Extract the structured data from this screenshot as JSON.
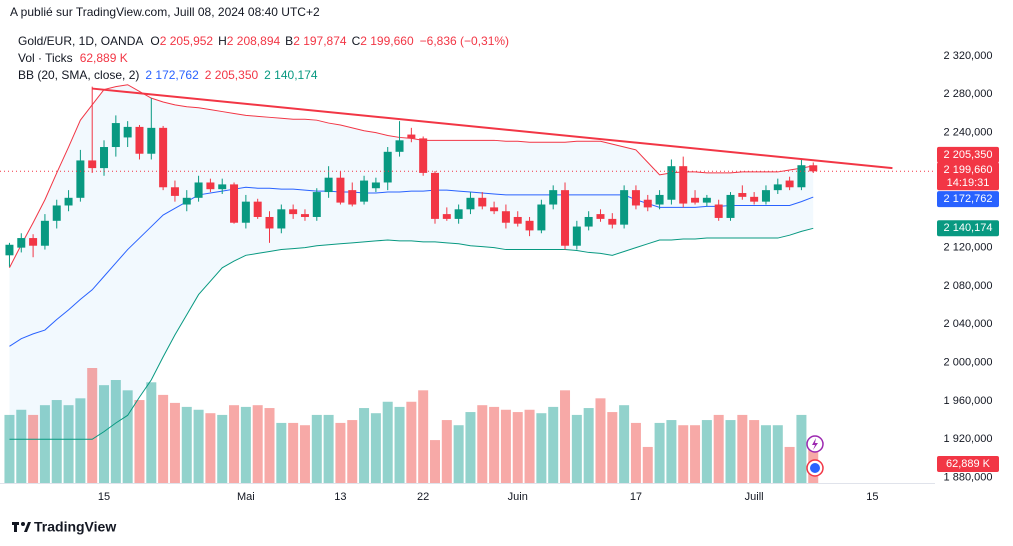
{
  "chart_data": {
    "type": "candlestick",
    "header": {
      "published": "A publié sur TradingView.com, Juill 08, 2024 08:40 UTC+2",
      "symbol": "Gold/EUR, 1D, OANDA",
      "ohlc_keys": [
        "O",
        "H",
        "B",
        "C"
      ],
      "ohlc_labels": [
        "2 205,952",
        "2 208,894",
        "2 197,874",
        "2 199,660"
      ],
      "change": "−6,836 (−0,31%)",
      "vol_title": "Vol · Ticks",
      "vol_label": "62,889 K",
      "bb_title": "BB (20, SMA, close, 2)",
      "countdown": "14:19:31"
    },
    "footer": "TradingView",
    "up_color": "#089981",
    "down_color": "#f23645",
    "vol_up_color": "rgba(38,166,154,0.5)",
    "vol_down_color": "rgba(239,83,80,0.5)",
    "grid": false,
    "xlim": [
      -0.8,
      78.3
    ],
    "ylim": [
      1874.4,
      2349.2
    ],
    "xticks": [
      {
        "value": 8,
        "label": "15"
      },
      {
        "value": 20,
        "label": "Mai"
      },
      {
        "value": 28,
        "label": "13"
      },
      {
        "value": 35,
        "label": "22"
      },
      {
        "value": 43,
        "label": "Juin"
      },
      {
        "value": 53,
        "label": "17"
      },
      {
        "value": 63,
        "label": "Juill"
      },
      {
        "value": 73,
        "label": "15"
      }
    ],
    "yticks": [
      {
        "value": 2320,
        "label": "2 320,000"
      },
      {
        "value": 2280,
        "label": "2 280,000"
      },
      {
        "value": 2240,
        "label": "2 240,000"
      },
      {
        "value": 2120,
        "label": "2 120,000"
      },
      {
        "value": 2080,
        "label": "2 080,000"
      },
      {
        "value": 2040,
        "label": "2 040,000"
      },
      {
        "value": 2000,
        "label": "2 000,000"
      },
      {
        "value": 1960,
        "label": "1 960,000"
      },
      {
        "value": 1920,
        "label": "1 920,000"
      },
      {
        "value": 1880,
        "label": "1 880,000"
      }
    ],
    "ohlc": [
      [
        2112,
        2125,
        2100,
        2123
      ],
      [
        2120,
        2135,
        2115,
        2130
      ],
      [
        2130,
        2134,
        2110,
        2122
      ],
      [
        2122,
        2155,
        2118,
        2148
      ],
      [
        2148,
        2170,
        2140,
        2164
      ],
      [
        2164,
        2180,
        2158,
        2172
      ],
      [
        2172,
        2222,
        2168,
        2211
      ],
      [
        2211,
        2288,
        2198,
        2203
      ],
      [
        2203,
        2232,
        2195,
        2225
      ],
      [
        2225,
        2258,
        2215,
        2250
      ],
      [
        2235,
        2252,
        2225,
        2246
      ],
      [
        2246,
        2248,
        2212,
        2218
      ],
      [
        2218,
        2276,
        2212,
        2245
      ],
      [
        2245,
        2247,
        2180,
        2183
      ],
      [
        2183,
        2190,
        2168,
        2174
      ],
      [
        2165,
        2180,
        2158,
        2172
      ],
      [
        2172,
        2195,
        2168,
        2188
      ],
      [
        2188,
        2192,
        2178,
        2181
      ],
      [
        2181,
        2192,
        2176,
        2186
      ],
      [
        2186,
        2188,
        2145,
        2146
      ],
      [
        2146,
        2175,
        2140,
        2168
      ],
      [
        2168,
        2171,
        2150,
        2152
      ],
      [
        2152,
        2158,
        2125,
        2140
      ],
      [
        2140,
        2165,
        2135,
        2160
      ],
      [
        2160,
        2165,
        2150,
        2155
      ],
      [
        2155,
        2160,
        2148,
        2152
      ],
      [
        2152,
        2182,
        2148,
        2178
      ],
      [
        2178,
        2205,
        2172,
        2193
      ],
      [
        2193,
        2200,
        2165,
        2167
      ],
      [
        2180,
        2188,
        2163,
        2165
      ],
      [
        2168,
        2195,
        2165,
        2190
      ],
      [
        2182,
        2193,
        2178,
        2188
      ],
      [
        2188,
        2225,
        2180,
        2220
      ],
      [
        2220,
        2252,
        2215,
        2232
      ],
      [
        2238,
        2245,
        2230,
        2234
      ],
      [
        2234,
        2236,
        2195,
        2198
      ],
      [
        2198,
        2200,
        2145,
        2150
      ],
      [
        2155,
        2162,
        2148,
        2150
      ],
      [
        2150,
        2165,
        2145,
        2160
      ],
      [
        2160,
        2178,
        2155,
        2172
      ],
      [
        2172,
        2178,
        2160,
        2163
      ],
      [
        2162,
        2168,
        2155,
        2158
      ],
      [
        2158,
        2165,
        2140,
        2146
      ],
      [
        2152,
        2158,
        2142,
        2145
      ],
      [
        2148,
        2152,
        2132,
        2138
      ],
      [
        2138,
        2170,
        2135,
        2165
      ],
      [
        2165,
        2185,
        2160,
        2180
      ],
      [
        2180,
        2188,
        2118,
        2122
      ],
      [
        2122,
        2148,
        2118,
        2142
      ],
      [
        2142,
        2158,
        2138,
        2152
      ],
      [
        2155,
        2160,
        2147,
        2150
      ],
      [
        2150,
        2156,
        2140,
        2144
      ],
      [
        2144,
        2185,
        2140,
        2180
      ],
      [
        2180,
        2185,
        2160,
        2164
      ],
      [
        2170,
        2175,
        2158,
        2162
      ],
      [
        2165,
        2180,
        2160,
        2175
      ],
      [
        2170,
        2212,
        2165,
        2205
      ],
      [
        2205,
        2215,
        2162,
        2166
      ],
      [
        2172,
        2180,
        2165,
        2167
      ],
      [
        2167,
        2175,
        2163,
        2172
      ],
      [
        2165,
        2170,
        2148,
        2151
      ],
      [
        2151,
        2178,
        2148,
        2175
      ],
      [
        2177,
        2185,
        2170,
        2173
      ],
      [
        2173,
        2178,
        2165,
        2168
      ],
      [
        2168,
        2185,
        2165,
        2180
      ],
      [
        2180,
        2192,
        2176,
        2186
      ],
      [
        2190,
        2194,
        2180,
        2183
      ],
      [
        2183,
        2212,
        2180,
        2206
      ],
      [
        2205.952,
        2208.894,
        2197.874,
        2199.66
      ]
    ],
    "volume": [
      119,
      128,
      119,
      136,
      145,
      136,
      148,
      201,
      171,
      180,
      162,
      145,
      176,
      154,
      140,
      133,
      128,
      122,
      119,
      136,
      133,
      136,
      131,
      105,
      105,
      101,
      119,
      119,
      105,
      110,
      131,
      122,
      142,
      133,
      142,
      162,
      75,
      110,
      101,
      124,
      136,
      133,
      128,
      124,
      128,
      122,
      133,
      162,
      119,
      131,
      148,
      124,
      136,
      105,
      63,
      105,
      110,
      101,
      101,
      110,
      119,
      110,
      119,
      110,
      101,
      101,
      63,
      119,
      62.889
    ],
    "bb_upper": {
      "color": "#f23645",
      "last_label": "2 205,350",
      "values": [
        2099,
        2123,
        2146,
        2170,
        2198,
        2225,
        2253,
        2269,
        2285,
        2288,
        2290,
        2283,
        2276,
        2272,
        2269,
        2267,
        2266,
        2264,
        2262,
        2260,
        2258,
        2257,
        2256,
        2255,
        2254,
        2254,
        2253,
        2250,
        2248,
        2245,
        2242,
        2240,
        2237,
        2235,
        2234,
        2232,
        2232,
        2232,
        2232,
        2232,
        2232,
        2232,
        2231,
        2231,
        2230,
        2230,
        2230,
        2230,
        2231,
        2231,
        2231,
        2228,
        2225,
        2222,
        2209,
        2196,
        2198,
        2199,
        2199,
        2198,
        2198,
        2198,
        2199,
        2199,
        2199,
        2199,
        2201,
        2203,
        2205.35
      ]
    },
    "bb_basis": {
      "color": "#2962ff",
      "last_label": "2 172,762",
      "values": [
        2017,
        2025,
        2030,
        2034,
        2045,
        2055,
        2066,
        2076,
        2090,
        2104,
        2118,
        2130,
        2142,
        2154,
        2161,
        2168,
        2175,
        2177,
        2179,
        2181,
        2183,
        2182,
        2182,
        2181,
        2181,
        2180,
        2179,
        2179,
        2178,
        2178,
        2177,
        2177,
        2178,
        2178,
        2179,
        2179,
        2180,
        2180,
        2179,
        2178,
        2177,
        2176,
        2175,
        2175,
        2175,
        2175,
        2175,
        2175,
        2175,
        2175,
        2175,
        2175,
        2175,
        2170,
        2166,
        2162,
        2162,
        2162,
        2162,
        2163,
        2163,
        2164,
        2164,
        2164,
        2164,
        2164,
        2164,
        2168,
        2172.762
      ]
    },
    "bb_lower": {
      "color": "#089981",
      "last_label": "2 140,174",
      "values": [
        1920,
        1920,
        1920,
        1920,
        1920,
        1920,
        1920,
        1920,
        1928,
        1937,
        1945,
        1964,
        1982,
        2006,
        2029,
        2050,
        2071,
        2085,
        2099,
        2106,
        2112,
        2114,
        2116,
        2118,
        2119,
        2120,
        2122,
        2123,
        2124,
        2125,
        2126,
        2127,
        2128,
        2127,
        2127,
        2126,
        2126,
        2125,
        2124,
        2122,
        2121,
        2120,
        2118,
        2118,
        2118,
        2118,
        2118,
        2118,
        2117,
        2115,
        2114,
        2112,
        2116,
        2120,
        2124,
        2128,
        2128,
        2129,
        2129,
        2130,
        2130,
        2130,
        2130,
        2130,
        2130,
        2130,
        2133,
        2137,
        2140.174
      ]
    },
    "bb_fill": "rgba(33,150,243,0.06)",
    "trend_line": {
      "color": "#f23645",
      "x": [
        7,
        74.7
      ],
      "values": [
        2286,
        2203
      ]
    }
  }
}
